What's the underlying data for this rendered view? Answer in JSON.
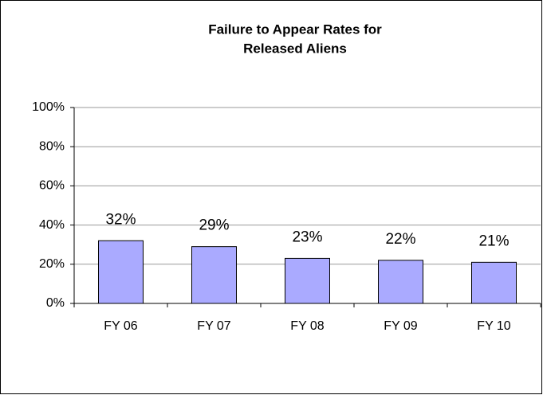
{
  "chart_data": {
    "type": "bar",
    "title_lines": [
      "Failure to Appear Rates for",
      "Released Aliens"
    ],
    "categories": [
      "FY 06",
      "FY 07",
      "FY 08",
      "FY 09",
      "FY 10"
    ],
    "values": [
      32,
      29,
      23,
      22,
      21
    ],
    "value_labels": [
      "32%",
      "29%",
      "23%",
      "22%",
      "21%"
    ],
    "color": "#aaaaff",
    "ylim": [
      0,
      100
    ],
    "yticks": [
      {
        "value": 0,
        "label": "0%"
      },
      {
        "value": 20,
        "label": "20%"
      },
      {
        "value": 40,
        "label": "40%"
      },
      {
        "value": 60,
        "label": "60%"
      },
      {
        "value": 80,
        "label": "80%"
      },
      {
        "value": 100,
        "label": "100%"
      }
    ],
    "grid": true
  }
}
